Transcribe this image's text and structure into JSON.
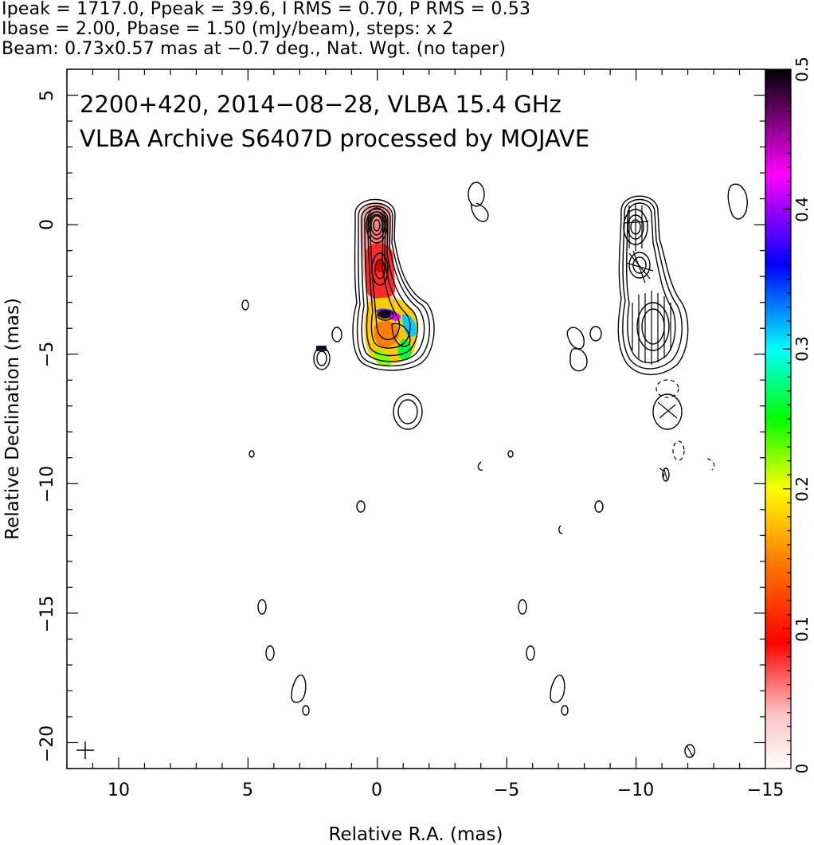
{
  "header": {
    "line1": "Ipeak = 1717.0, Ppeak = 39.6, I RMS = 0.70, P RMS = 0.53",
    "line2": "Ibase = 2.00, Pbase = 1.50 (mJy/beam), steps: x 2",
    "line3": "Beam: 0.73x0.57 mas at −0.7 deg., Nat. Wgt. (no taper)"
  },
  "chart_data": {
    "type": "contour",
    "title_line1": "2200+420, 2014−08−28, VLBA 15.4 GHz",
    "title_line2": "VLBA Archive S6407D processed by MOJAVE",
    "xlabel": "Relative R.A. (mas)",
    "ylabel": "Relative Declination (mas)",
    "xlim": [
      12,
      -15
    ],
    "ylim": [
      -21,
      6
    ],
    "x_ticks": [
      10,
      5,
      0,
      -5,
      -10,
      -15
    ],
    "x_tick_labels": [
      "10",
      "5",
      "0",
      "−5",
      "−10",
      "−15"
    ],
    "y_ticks": [
      5,
      0,
      -5,
      -10,
      -15,
      -20
    ],
    "y_tick_labels": [
      "5",
      "0",
      "−5",
      "−10",
      "−15",
      "−20"
    ],
    "colorbar": {
      "range": [
        0,
        0.5
      ],
      "ticks": [
        0,
        0.1,
        0.2,
        0.3,
        0.4,
        0.5
      ],
      "tick_labels": [
        "0",
        "0.1",
        "0.2",
        "0.3",
        "0.4",
        "0.5"
      ],
      "colors": [
        "#ffffff",
        "#ff0000",
        "#ff8000",
        "#ffff00",
        "#00ff00",
        "#00ffff",
        "#0000ff",
        "#ff00ff",
        "#000000"
      ]
    },
    "left_panel": {
      "core": {
        "x": 0,
        "y": 0
      },
      "islands": [
        {
          "x": 5.0,
          "y": -3.1
        },
        {
          "x": 2.1,
          "y": -5.1
        },
        {
          "x": 1.5,
          "y": -4.2
        },
        {
          "x": -1.2,
          "y": -7.2
        },
        {
          "x": 4.8,
          "y": -8.8
        },
        {
          "x": 0.5,
          "y": -10.8
        },
        {
          "x": 4.3,
          "y": -14.8
        },
        {
          "x": 4.0,
          "y": -16.5
        },
        {
          "x": 3.0,
          "y": -18.2
        },
        {
          "x": 2.7,
          "y": -18.7
        }
      ]
    },
    "right_panel": {
      "islands": [
        {
          "x": -3.9,
          "y": 1.1
        },
        {
          "x": -15.8,
          "y": 1.0
        },
        {
          "x": -7.8,
          "y": -4.3
        },
        {
          "x": -8.3,
          "y": -4.2
        },
        {
          "x": -11.1,
          "y": -7.2
        },
        {
          "x": -3.9,
          "y": -9.2
        },
        {
          "x": -5.1,
          "y": -8.8
        },
        {
          "x": -10.8,
          "y": -9.7
        },
        {
          "x": -9.3,
          "y": -10.8
        },
        {
          "x": -5.6,
          "y": -14.8
        },
        {
          "x": -5.9,
          "y": -16.5
        },
        {
          "x": -6.9,
          "y": -18.2
        },
        {
          "x": -7.2,
          "y": -18.7
        },
        {
          "x": -12.0,
          "y": -20.2
        }
      ]
    },
    "beam": {
      "major": 0.73,
      "minor": 0.57,
      "pa": -0.7
    }
  }
}
